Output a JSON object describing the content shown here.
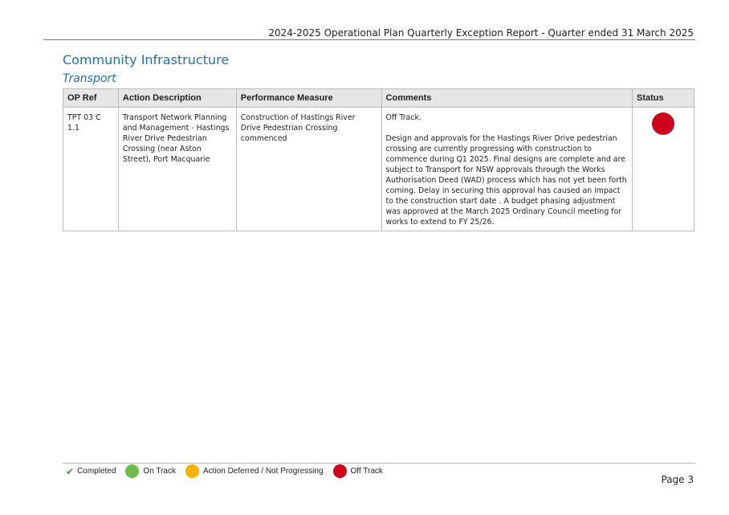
{
  "header": {
    "title": "2024-2025 Operational Plan Quarterly Exception Report - Quarter ended 31 March 2025"
  },
  "section": {
    "title": "Community Infrastructure",
    "subtitle": "Transport"
  },
  "table": {
    "columns": [
      "OP Ref",
      "Action Description",
      "Performance Measure",
      "Comments",
      "Status"
    ],
    "rows": [
      {
        "op_ref": "TPT 03 C 1.1",
        "action_description": "Transport Network Planning and Management - Hastings River Drive Pedestrian Crossing (near Aston Street), Port Macquarie",
        "performance_measure": "Construction of Hastings River Drive Pedestrian Crossing commenced",
        "comments_status": "Off Track.",
        "comments_body": "Design and approvals for the Hastings River Drive pedestrian crossing are currently progressing with construction to commence during Q1 2025. Final designs are complete and are subject to Transport for NSW approvals through the Works Authorisation Deed (WAD) process which has not yet been forth coming. Delay in securing this approval  has caused an impact to the construction start date . A budget phasing adjustment was approved at the March 2025 Ordinary Council meeting for works to extend to FY 25/26.",
        "status": "Off Track",
        "status_color": "#d0021b"
      }
    ]
  },
  "legend": {
    "completed": "Completed",
    "on_track": "On Track",
    "deferred": "Action Deferred / Not Progressing",
    "off_track": "Off Track",
    "colors": {
      "completed": "#3a9a2a",
      "on_track": "#6cc04a",
      "deferred": "#f5b400",
      "off_track": "#d0021b"
    }
  },
  "footer": {
    "page": "Page 3"
  }
}
